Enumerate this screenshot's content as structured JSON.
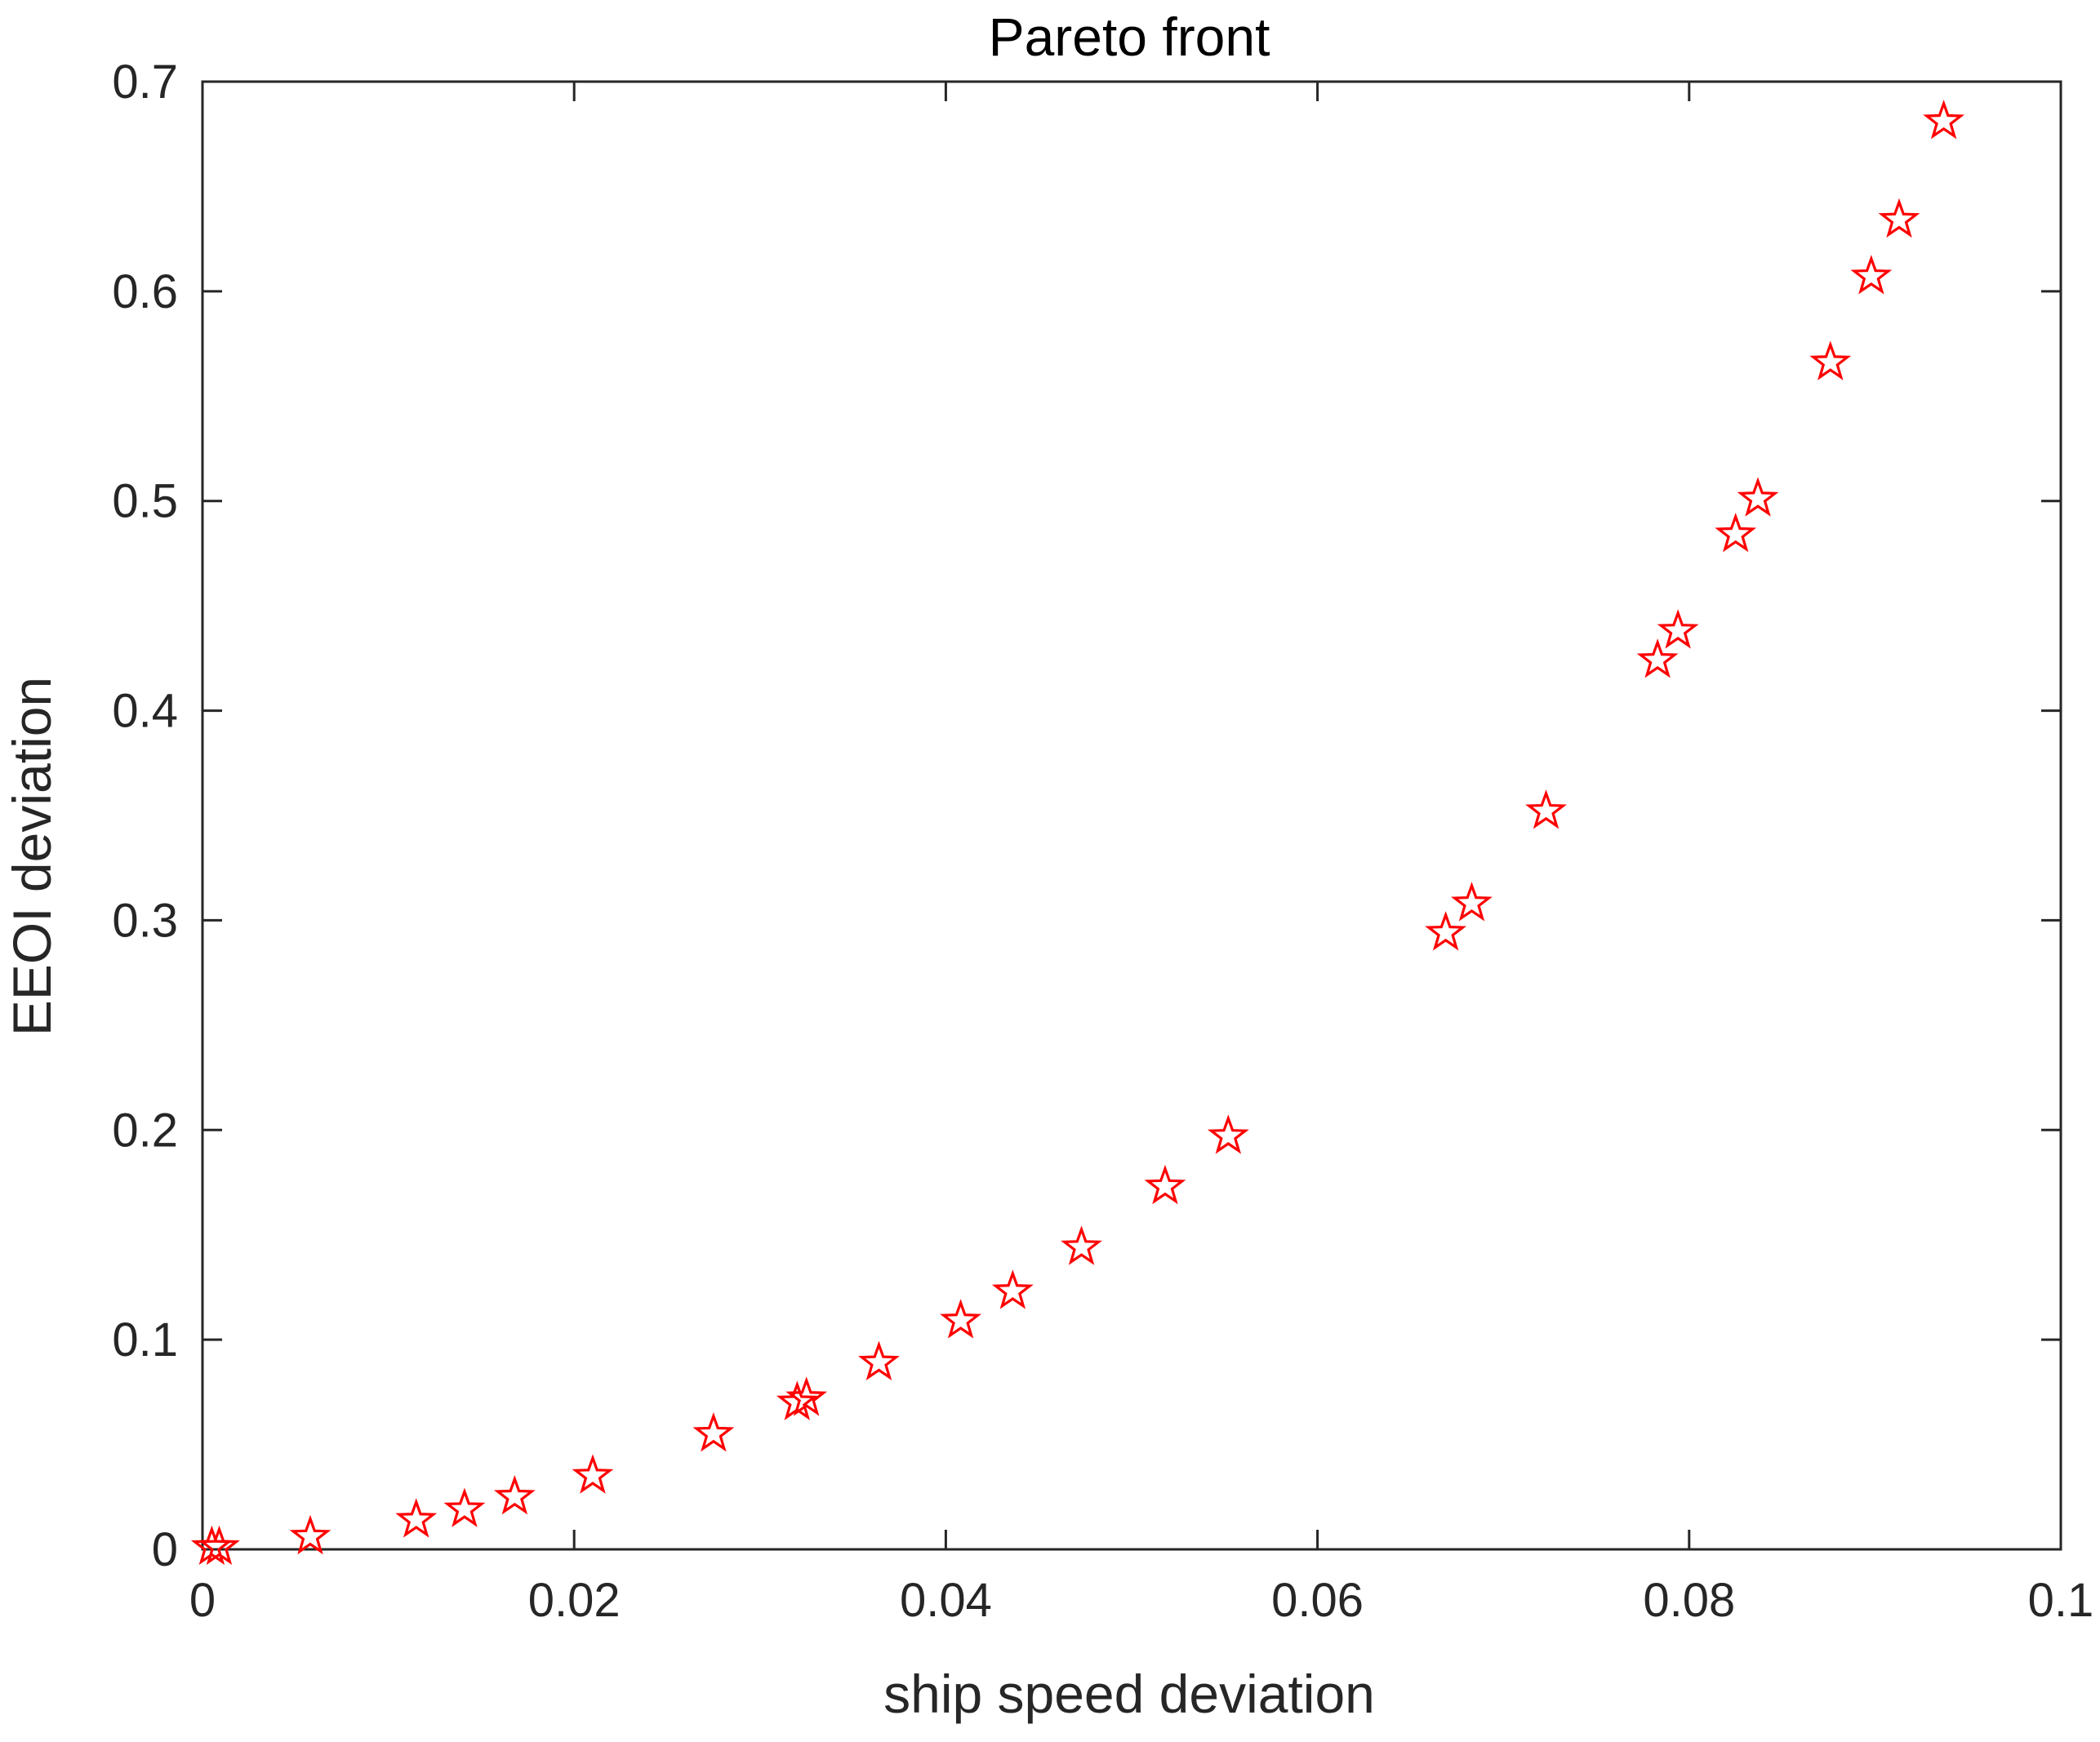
{
  "chart_data": {
    "type": "scatter",
    "title": "Pareto front",
    "xlabel": "ship speed deviation",
    "ylabel": "EEOI deviation",
    "xlim": [
      0,
      0.1
    ],
    "ylim": [
      0,
      0.7
    ],
    "x_ticks": [
      0,
      0.02,
      0.04,
      0.06,
      0.08,
      0.1
    ],
    "x_tick_labels": [
      "0",
      "0.02",
      "0.04",
      "0.06",
      "0.08",
      "0.1"
    ],
    "y_ticks": [
      0,
      0.1,
      0.2,
      0.3,
      0.4,
      0.5,
      0.6,
      0.7
    ],
    "y_tick_labels": [
      "0",
      "0.1",
      "0.2",
      "0.3",
      "0.4",
      "0.5",
      "0.6",
      "0.7"
    ],
    "grid": false,
    "box": true,
    "marker": "pentagram",
    "marker_color": "#ff0000",
    "axis_color": "#262626",
    "series": [
      {
        "points": [
          {
            "x": 0.0005,
            "y": 0.001
          },
          {
            "x": 0.0009,
            "y": 0.001
          },
          {
            "x": 0.0058,
            "y": 0.006
          },
          {
            "x": 0.0115,
            "y": 0.014
          },
          {
            "x": 0.0141,
            "y": 0.019
          },
          {
            "x": 0.0168,
            "y": 0.025
          },
          {
            "x": 0.021,
            "y": 0.035
          },
          {
            "x": 0.0275,
            "y": 0.055
          },
          {
            "x": 0.032,
            "y": 0.07
          },
          {
            "x": 0.0325,
            "y": 0.072
          },
          {
            "x": 0.0364,
            "y": 0.089
          },
          {
            "x": 0.0408,
            "y": 0.109
          },
          {
            "x": 0.0436,
            "y": 0.123
          },
          {
            "x": 0.0473,
            "y": 0.144
          },
          {
            "x": 0.0518,
            "y": 0.173
          },
          {
            "x": 0.0552,
            "y": 0.197
          },
          {
            "x": 0.0669,
            "y": 0.294
          },
          {
            "x": 0.0683,
            "y": 0.308
          },
          {
            "x": 0.0723,
            "y": 0.352
          },
          {
            "x": 0.0783,
            "y": 0.424
          },
          {
            "x": 0.0794,
            "y": 0.438
          },
          {
            "x": 0.0825,
            "y": 0.484
          },
          {
            "x": 0.0837,
            "y": 0.501
          },
          {
            "x": 0.0876,
            "y": 0.566
          },
          {
            "x": 0.0898,
            "y": 0.607
          },
          {
            "x": 0.0913,
            "y": 0.634
          },
          {
            "x": 0.0937,
            "y": 0.681
          }
        ]
      }
    ]
  }
}
